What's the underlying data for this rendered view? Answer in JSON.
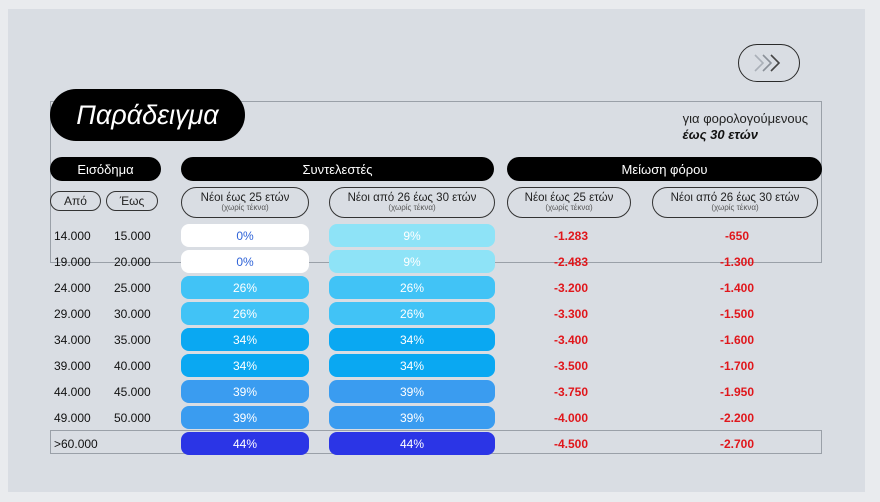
{
  "title": "Παράδειγμα",
  "note": {
    "line1": "για φορολογούμενους",
    "line2": "έως 30 ετών"
  },
  "headers": {
    "income": "Εισόδημα",
    "rates": "Συντελεστές",
    "reduction": "Μείωση φόρου"
  },
  "income_cols": {
    "from": "Από",
    "to": "Έως"
  },
  "groups": {
    "young25": {
      "label": "Νέοι έως 25 ετών",
      "sub": "(χωρίς τέκνα)"
    },
    "young26_30": {
      "label": "Νέοι από 26 έως 30 ετών",
      "sub": "(χωρίς τέκνα)"
    }
  },
  "rows": [
    {
      "from": "14.000",
      "to": "15.000",
      "rate25": "0%",
      "rate30": "9%",
      "red25": "-1.283",
      "red30": "-650"
    },
    {
      "from": "19.000",
      "to": "20.000",
      "rate25": "0%",
      "rate30": "9%",
      "red25": "-2.483",
      "red30": "-1.300"
    },
    {
      "from": "24.000",
      "to": "25.000",
      "rate25": "26%",
      "rate30": "26%",
      "red25": "-3.200",
      "red30": "-1.400"
    },
    {
      "from": "29.000",
      "to": "30.000",
      "rate25": "26%",
      "rate30": "26%",
      "red25": "-3.300",
      "red30": "-1.500"
    },
    {
      "from": "34.000",
      "to": "35.000",
      "rate25": "34%",
      "rate30": "34%",
      "red25": "-3.400",
      "red30": "-1.600"
    },
    {
      "from": "39.000",
      "to": "40.000",
      "rate25": "34%",
      "rate30": "34%",
      "red25": "-3.500",
      "red30": "-1.700"
    },
    {
      "from": "44.000",
      "to": "45.000",
      "rate25": "39%",
      "rate30": "39%",
      "red25": "-3.750",
      "red30": "-1.950"
    },
    {
      "from": "49.000",
      "to": "50.000",
      "rate25": "39%",
      "rate30": "39%",
      "red25": "-4.000",
      "red30": "-2.200"
    },
    {
      "from": ">60.000",
      "to": "",
      "rate25": "44%",
      "rate30": "44%",
      "red25": "-4.500",
      "red30": "-2.700"
    }
  ],
  "colors": {
    "0%": "#ffffff",
    "9%": "#8ee3f7",
    "26%": "#41c3f6",
    "34%": "#0aa8f2",
    "39%": "#3a9cf0",
    "44%": "#2b35e6",
    "zero_text": "#2f63d8",
    "nine_text": "#ffffff",
    "reduction_text": "#e0161b"
  },
  "next_icon": "triple-chevron-right-icon"
}
